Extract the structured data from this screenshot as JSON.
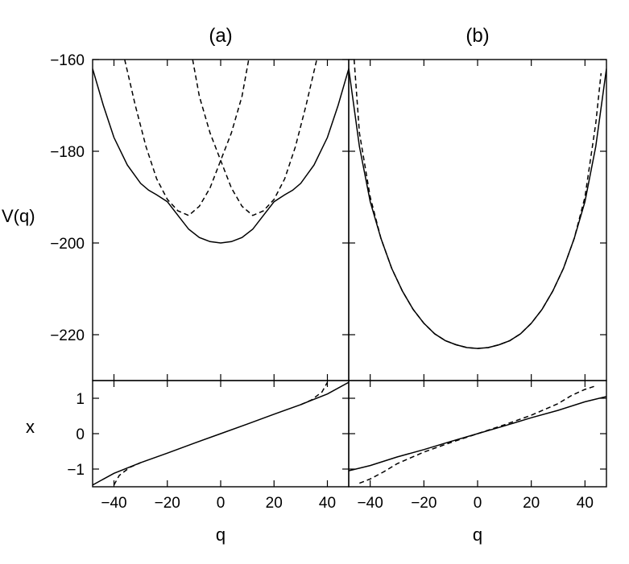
{
  "chart_data": [
    {
      "panel": "(a)",
      "type": "line",
      "title": "(a)",
      "xlabel": "",
      "ylabel": "V(q)",
      "xlim": [
        -48,
        48
      ],
      "ylim": [
        -230,
        -160
      ],
      "x_ticks": [],
      "y_ticks": [
        -220,
        -200,
        -180,
        -160
      ],
      "series": [
        {
          "style": "solid",
          "points": [
            [
              -48,
              -162
            ],
            [
              -44,
              -170
            ],
            [
              -40,
              -177
            ],
            [
              -35,
              -183
            ],
            [
              -30,
              -187
            ],
            [
              -27,
              -188.5
            ],
            [
              -24,
              -189.5
            ],
            [
              -20,
              -191
            ],
            [
              -16,
              -194
            ],
            [
              -12,
              -197
            ],
            [
              -8,
              -198.8
            ],
            [
              -4,
              -199.7
            ],
            [
              0,
              -200
            ],
            [
              4,
              -199.7
            ],
            [
              8,
              -198.8
            ],
            [
              12,
              -197
            ],
            [
              16,
              -194
            ],
            [
              20,
              -191
            ],
            [
              24,
              -189.5
            ],
            [
              27,
              -188.5
            ],
            [
              30,
              -187
            ],
            [
              35,
              -183
            ],
            [
              40,
              -177
            ],
            [
              44,
              -170
            ],
            [
              48,
              -162
            ]
          ]
        },
        {
          "style": "dashed",
          "points": [
            [
              -36,
              -160
            ],
            [
              -32,
              -170
            ],
            [
              -28,
              -179
            ],
            [
              -24,
              -186
            ],
            [
              -20,
              -190.5
            ],
            [
              -16,
              -193
            ],
            [
              -12,
              -194
            ],
            [
              -8,
              -192
            ],
            [
              -4,
              -188
            ],
            [
              0,
              -182
            ],
            [
              4,
              -176
            ],
            [
              8,
              -168
            ],
            [
              10.5,
              -160
            ]
          ]
        },
        {
          "style": "dashed",
          "points": [
            [
              -10.5,
              -160
            ],
            [
              -8,
              -168
            ],
            [
              -4,
              -176
            ],
            [
              0,
              -182
            ],
            [
              4,
              -188
            ],
            [
              8,
              -192
            ],
            [
              12,
              -194
            ],
            [
              16,
              -193
            ],
            [
              20,
              -190.5
            ],
            [
              24,
              -186
            ],
            [
              28,
              -179
            ],
            [
              32,
              -170
            ],
            [
              36,
              -160
            ]
          ]
        }
      ]
    },
    {
      "panel": "(a) lower",
      "type": "line",
      "xlabel": "q",
      "ylabel": "x",
      "xlim": [
        -48,
        48
      ],
      "ylim": [
        -1.5,
        1.5
      ],
      "x_ticks": [
        -40,
        -20,
        0,
        20,
        40
      ],
      "y_ticks": [
        -1,
        0,
        1
      ],
      "series": [
        {
          "style": "solid",
          "points": [
            [
              -48,
              -1.45
            ],
            [
              -40,
              -1.12
            ],
            [
              -30,
              -0.82
            ],
            [
              -20,
              -0.55
            ],
            [
              -10,
              -0.27
            ],
            [
              0,
              0
            ],
            [
              10,
              0.27
            ],
            [
              20,
              0.55
            ],
            [
              30,
              0.82
            ],
            [
              40,
              1.12
            ],
            [
              48,
              1.45
            ]
          ]
        },
        {
          "style": "dashed",
          "points": [
            [
              -40,
              -1.45
            ],
            [
              -38,
              -1.18
            ],
            [
              -34,
              -0.95
            ],
            [
              -30,
              -0.82
            ]
          ]
        },
        {
          "style": "dashed",
          "points": [
            [
              30,
              0.82
            ],
            [
              34,
              0.95
            ],
            [
              38,
              1.18
            ],
            [
              40,
              1.45
            ]
          ]
        }
      ]
    },
    {
      "panel": "(b)",
      "type": "line",
      "title": "(b)",
      "xlabel": "",
      "ylabel": "",
      "xlim": [
        -48,
        48
      ],
      "ylim": [
        -230,
        -160
      ],
      "x_ticks": [],
      "y_ticks": [
        -220,
        -200,
        -180,
        -160
      ],
      "series": [
        {
          "style": "solid",
          "points": [
            [
              -48,
              -162
            ],
            [
              -44,
              -179
            ],
            [
              -40,
              -191
            ],
            [
              -36,
              -199
            ],
            [
              -32,
              -205.5
            ],
            [
              -28,
              -210.5
            ],
            [
              -24,
              -214.5
            ],
            [
              -20,
              -217.5
            ],
            [
              -16,
              -219.8
            ],
            [
              -12,
              -221.3
            ],
            [
              -8,
              -222.2
            ],
            [
              -4,
              -222.8
            ],
            [
              0,
              -223
            ],
            [
              4,
              -222.8
            ],
            [
              8,
              -222.2
            ],
            [
              12,
              -221.3
            ],
            [
              16,
              -219.8
            ],
            [
              20,
              -217.5
            ],
            [
              24,
              -214.5
            ],
            [
              28,
              -210.5
            ],
            [
              32,
              -205.5
            ],
            [
              36,
              -199
            ],
            [
              40,
              -191
            ],
            [
              44,
              -179
            ],
            [
              48,
              -162
            ]
          ]
        },
        {
          "style": "dashed",
          "points": [
            [
              -46,
              -160
            ],
            [
              -44,
              -176
            ],
            [
              -40,
              -190
            ],
            [
              -36,
              -199
            ],
            [
              -32,
              -205.5
            ],
            [
              -28,
              -210.5
            ],
            [
              -24,
              -214.5
            ],
            [
              -20,
              -217.5
            ],
            [
              -16,
              -219.8
            ],
            [
              -12,
              -221.3
            ],
            [
              -8,
              -222.2
            ],
            [
              -4,
              -222.8
            ],
            [
              0,
              -223
            ],
            [
              4,
              -222.8
            ],
            [
              8,
              -222.2
            ],
            [
              12,
              -221.3
            ],
            [
              16,
              -219.8
            ],
            [
              20,
              -217.5
            ],
            [
              24,
              -214.5
            ],
            [
              28,
              -210.5
            ],
            [
              32,
              -205.5
            ],
            [
              36,
              -199
            ],
            [
              40,
              -190
            ],
            [
              44,
              -174
            ],
            [
              46,
              -163
            ]
          ]
        }
      ]
    },
    {
      "panel": "(b) lower",
      "type": "line",
      "xlabel": "q",
      "ylabel": "",
      "xlim": [
        -48,
        48
      ],
      "ylim": [
        -1.5,
        1.5
      ],
      "x_ticks": [
        -40,
        -20,
        0,
        20,
        40
      ],
      "y_ticks": [
        -1,
        0,
        1
      ],
      "series": [
        {
          "style": "solid",
          "points": [
            [
              -48,
              -1.05
            ],
            [
              -40,
              -0.9
            ],
            [
              -30,
              -0.66
            ],
            [
              -20,
              -0.45
            ],
            [
              -10,
              -0.22
            ],
            [
              0,
              0
            ],
            [
              10,
              0.22
            ],
            [
              20,
              0.45
            ],
            [
              30,
              0.66
            ],
            [
              40,
              0.9
            ],
            [
              48,
              1.05
            ]
          ]
        },
        {
          "style": "dashed",
          "points": [
            [
              -44,
              -1.4
            ],
            [
              -40,
              -1.28
            ],
            [
              -35,
              -1.08
            ],
            [
              -30,
              -0.85
            ],
            [
              -20,
              -0.52
            ],
            [
              -10,
              -0.25
            ],
            [
              0,
              0
            ],
            [
              10,
              0.25
            ],
            [
              20,
              0.52
            ],
            [
              30,
              0.85
            ],
            [
              35,
              1.08
            ],
            [
              40,
              1.25
            ],
            [
              44,
              1.35
            ]
          ]
        }
      ]
    }
  ]
}
